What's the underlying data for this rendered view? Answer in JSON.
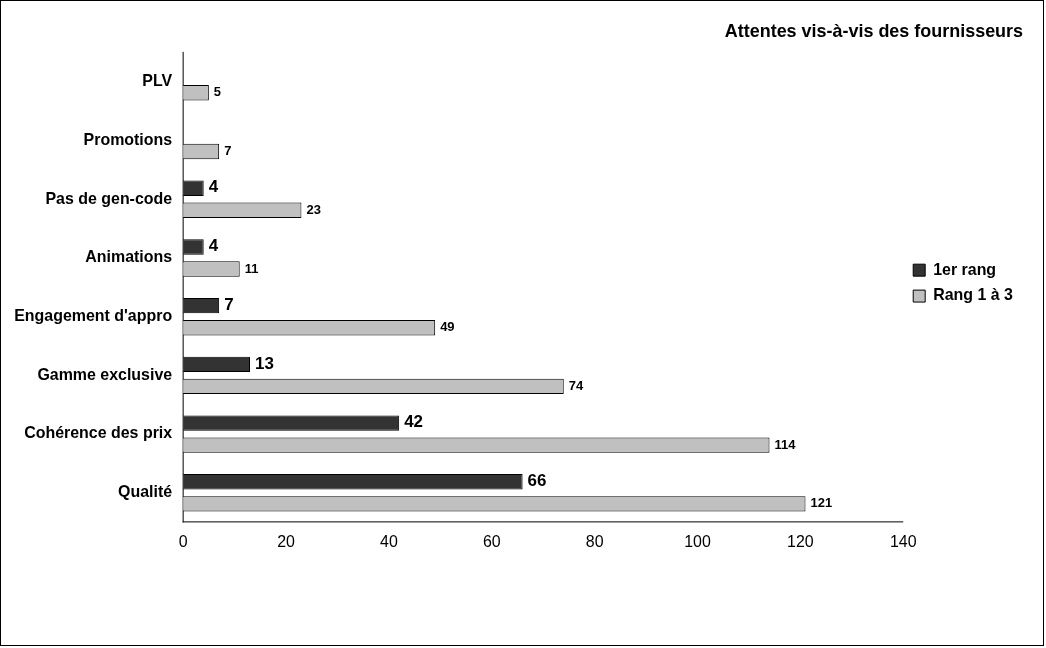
{
  "chart_data": {
    "type": "bar",
    "orientation": "horizontal",
    "title": "Attentes vis-à-vis des fournisseurs",
    "categories": [
      "PLV",
      "Promotions",
      "Pas de gen-code",
      "Animations",
      "Engagement d'appro",
      "Gamme exclusive",
      "Cohérence des prix",
      "Qualité"
    ],
    "series": [
      {
        "name": "1er rang",
        "color": "#333333",
        "values": [
          null,
          null,
          4,
          4,
          7,
          13,
          42,
          66
        ]
      },
      {
        "name": "Rang 1 à 3",
        "color": "#c0c0c0",
        "values": [
          5,
          7,
          23,
          11,
          49,
          74,
          114,
          121
        ]
      }
    ],
    "xlim": [
      0,
      140
    ],
    "xticks": [
      0,
      20,
      40,
      60,
      80,
      100,
      120,
      140
    ],
    "grid": false,
    "legend": "right",
    "data_labels": true
  }
}
